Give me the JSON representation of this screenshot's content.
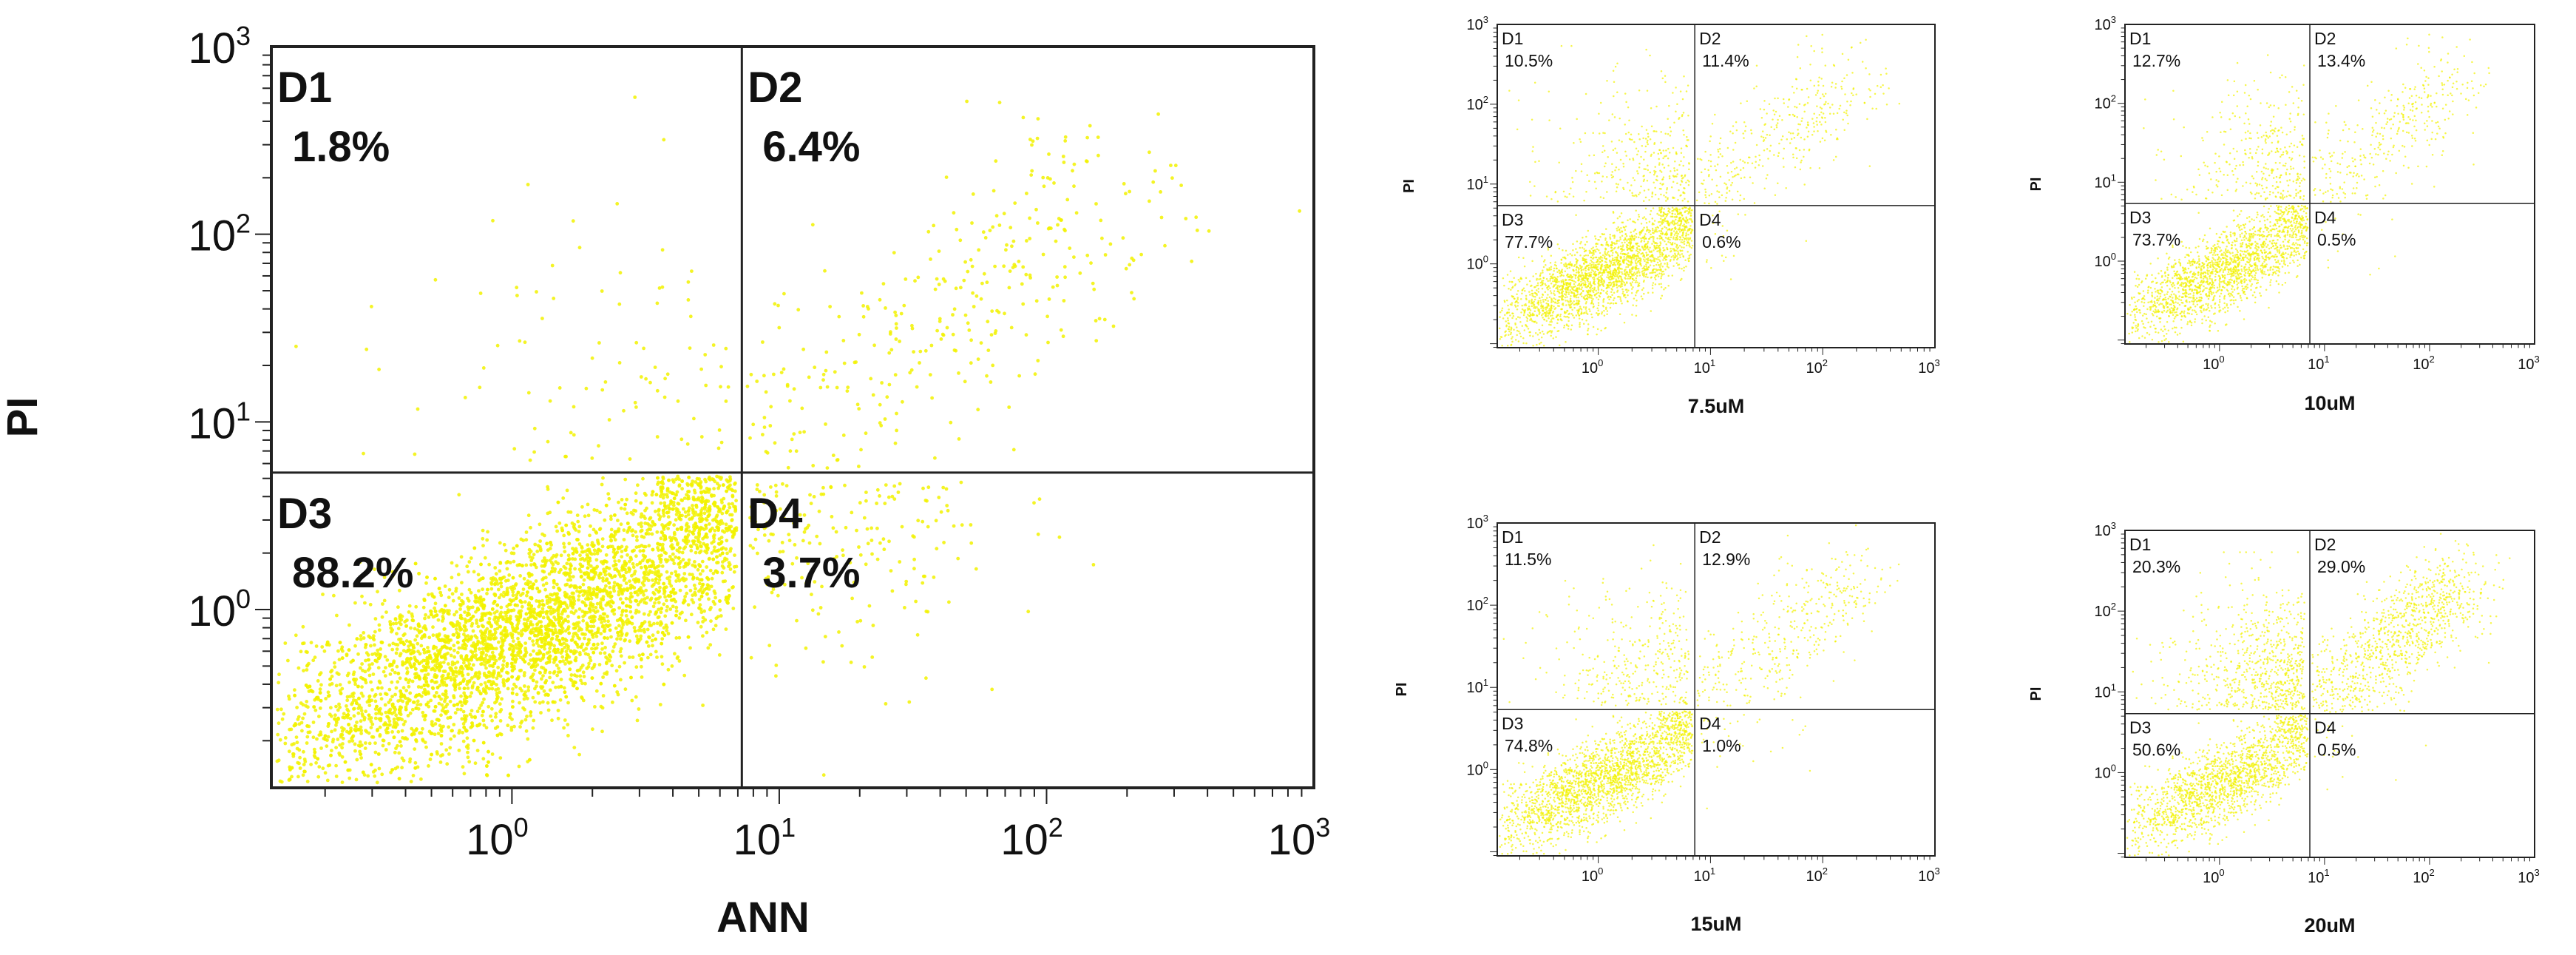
{
  "accent_color": "#f2f200",
  "frame_color": "#222222",
  "chart_data": [
    {
      "type": "scatter",
      "scale": "log",
      "xlim_decades": [
        -0.9,
        3
      ],
      "ylim_decades": [
        -0.95,
        3
      ],
      "x_ticks": [
        "10",
        "10",
        "10",
        "10"
      ],
      "x_tick_exponents": [
        "0",
        "1",
        "2",
        "3"
      ],
      "y_ticks": [
        "10",
        "10",
        "10",
        "10"
      ],
      "y_tick_exponents": [
        "0",
        "1",
        "2",
        "3"
      ],
      "xlabel": "ANN",
      "ylabel": "PI",
      "caption": "",
      "gate_x_decade": 0.86,
      "gate_y_decade": 0.73,
      "quadrants": [
        {
          "name": "D1",
          "value": "1.8%"
        },
        {
          "name": "D2",
          "value": "6.4%"
        },
        {
          "name": "D3",
          "value": "88.2%"
        },
        {
          "name": "D4",
          "value": "3.7%"
        }
      ],
      "points": 5200
    },
    {
      "type": "scatter",
      "scale": "log",
      "xlim_decades": [
        -0.9,
        3
      ],
      "ylim_decades": [
        -1.05,
        3
      ],
      "x_ticks": [
        "10",
        "10",
        "10",
        "10"
      ],
      "x_tick_exponents": [
        "0",
        "1",
        "2",
        "3"
      ],
      "y_ticks": [
        "10",
        "10",
        "10",
        "10"
      ],
      "y_tick_exponents": [
        "0",
        "1",
        "2",
        "3"
      ],
      "xlabel": "",
      "ylabel": "PI",
      "caption": "7.5uM",
      "gate_x_decade": 0.86,
      "gate_y_decade": 0.73,
      "quadrants": [
        {
          "name": "D1",
          "value": "10.5%"
        },
        {
          "name": "D2",
          "value": "11.4%"
        },
        {
          "name": "D3",
          "value": "77.7%"
        },
        {
          "name": "D4",
          "value": "0.6%"
        }
      ],
      "points": 3200
    },
    {
      "type": "scatter",
      "scale": "log",
      "xlim_decades": [
        -0.9,
        3
      ],
      "ylim_decades": [
        -1.05,
        3
      ],
      "x_ticks": [
        "10",
        "10",
        "10",
        "10"
      ],
      "x_tick_exponents": [
        "0",
        "1",
        "2",
        "3"
      ],
      "y_ticks": [
        "10",
        "10",
        "10",
        "10"
      ],
      "y_tick_exponents": [
        "0",
        "1",
        "2",
        "3"
      ],
      "xlabel": "",
      "ylabel": "PI",
      "caption": "10uM",
      "gate_x_decade": 0.86,
      "gate_y_decade": 0.73,
      "quadrants": [
        {
          "name": "D1",
          "value": "12.7%"
        },
        {
          "name": "D2",
          "value": "13.4%"
        },
        {
          "name": "D3",
          "value": "73.7%"
        },
        {
          "name": "D4",
          "value": "0.5%"
        }
      ],
      "points": 2600
    },
    {
      "type": "scatter",
      "scale": "log",
      "xlim_decades": [
        -0.9,
        3
      ],
      "ylim_decades": [
        -1.05,
        3
      ],
      "x_ticks": [
        "10",
        "10",
        "10",
        "10"
      ],
      "x_tick_exponents": [
        "0",
        "1",
        "2",
        "3"
      ],
      "y_ticks": [
        "10",
        "10",
        "10",
        "10"
      ],
      "y_tick_exponents": [
        "0",
        "1",
        "2",
        "3"
      ],
      "xlabel": "",
      "ylabel": "PI",
      "caption": "15uM",
      "gate_x_decade": 0.86,
      "gate_y_decade": 0.73,
      "quadrants": [
        {
          "name": "D1",
          "value": "11.5%"
        },
        {
          "name": "D2",
          "value": "12.9%"
        },
        {
          "name": "D3",
          "value": "74.8%"
        },
        {
          "name": "D4",
          "value": "1.0%"
        }
      ],
      "points": 3000
    },
    {
      "type": "scatter",
      "scale": "log",
      "xlim_decades": [
        -0.9,
        3
      ],
      "ylim_decades": [
        -1.05,
        3
      ],
      "x_ticks": [
        "10",
        "10",
        "10",
        "10"
      ],
      "x_tick_exponents": [
        "0",
        "1",
        "2",
        "3"
      ],
      "y_ticks": [
        "10",
        "10",
        "10",
        "10"
      ],
      "y_tick_exponents": [
        "0",
        "1",
        "2",
        "3"
      ],
      "xlabel": "",
      "ylabel": "PI",
      "caption": "20uM",
      "gate_x_decade": 0.86,
      "gate_y_decade": 0.73,
      "quadrants": [
        {
          "name": "D1",
          "value": "20.3%"
        },
        {
          "name": "D2",
          "value": "29.0%"
        },
        {
          "name": "D3",
          "value": "50.6%"
        },
        {
          "name": "D4",
          "value": "0.5%"
        }
      ],
      "points": 3400
    }
  ]
}
